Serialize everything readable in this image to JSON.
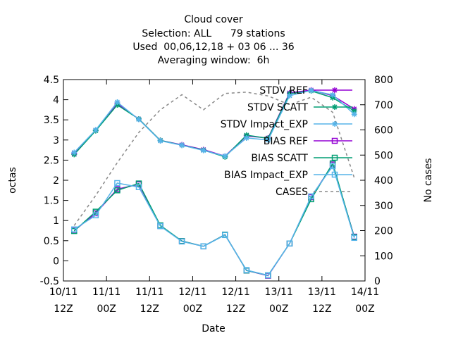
{
  "chart_data": {
    "type": "line",
    "title_lines": [
      "Cloud cover",
      "Selection: ALL      79 stations",
      "Used  00,06,12,18 + 03 06 ... 36",
      "Averaging window:  6h"
    ],
    "xlabel": "Date",
    "ylabel": "octas",
    "y2label": "No cases",
    "ylim": [
      -0.5,
      4.5
    ],
    "y2lim": [
      0,
      800
    ],
    "xlim_hours": [
      0,
      84
    ],
    "y_ticks": [
      "-0.5",
      "0",
      "0.5",
      "1",
      "1.5",
      "2",
      "2.5",
      "3",
      "3.5",
      "4",
      "4.5"
    ],
    "y2_ticks": [
      "0",
      "100",
      "200",
      "300",
      "400",
      "500",
      "600",
      "700",
      "800"
    ],
    "x_ticks": [
      {
        "line1": "10/11",
        "line2": "12Z"
      },
      {
        "line1": "11/11",
        "line2": "00Z"
      },
      {
        "line1": "11/11",
        "line2": "12Z"
      },
      {
        "line1": "12/11",
        "line2": "00Z"
      },
      {
        "line1": "12/11",
        "line2": "12Z"
      },
      {
        "line1": "13/11",
        "line2": "00Z"
      },
      {
        "line1": "13/11",
        "line2": "12Z"
      },
      {
        "line1": "14/11",
        "line2": "00Z"
      }
    ],
    "x_hours": [
      3,
      9,
      15,
      21,
      27,
      33,
      39,
      45,
      51,
      57,
      63,
      69,
      75,
      81
    ],
    "series": [
      {
        "name": "STDV REF",
        "color": "#9400d3",
        "marker": "star",
        "axis": "y1",
        "values": [
          2.66,
          3.24,
          3.9,
          3.52,
          2.99,
          2.88,
          2.76,
          2.6,
          3.1,
          3.05,
          4.17,
          4.24,
          4.1,
          3.77
        ]
      },
      {
        "name": "STDV SCATT",
        "color": "#009e73",
        "marker": "star",
        "axis": "y1",
        "values": [
          2.64,
          3.23,
          3.87,
          3.52,
          2.99,
          2.87,
          2.75,
          2.58,
          3.12,
          3.04,
          4.15,
          4.22,
          4.05,
          3.72
        ]
      },
      {
        "name": "STDV Impact_EXP",
        "color": "#56b4e9",
        "marker": "star",
        "axis": "y1",
        "values": [
          2.69,
          3.25,
          3.94,
          3.51,
          2.98,
          2.87,
          2.74,
          2.6,
          3.05,
          3.0,
          4.1,
          4.23,
          4.12,
          3.64
        ]
      },
      {
        "name": "BIAS REF",
        "color": "#9400d3",
        "marker": "square",
        "axis": "y1",
        "values": [
          0.75,
          1.18,
          1.78,
          1.9,
          0.87,
          0.49,
          0.36,
          0.65,
          -0.24,
          -0.37,
          0.43,
          1.58,
          2.39,
          0.6
        ]
      },
      {
        "name": "BIAS SCATT",
        "color": "#009e73",
        "marker": "square",
        "axis": "y1",
        "values": [
          0.74,
          1.22,
          1.75,
          1.92,
          0.88,
          0.49,
          0.36,
          0.65,
          -0.24,
          -0.36,
          0.43,
          1.53,
          2.42,
          0.59
        ]
      },
      {
        "name": "BIAS Impact_EXP",
        "color": "#56b4e9",
        "marker": "square",
        "axis": "y1",
        "values": [
          0.78,
          1.13,
          1.93,
          1.83,
          0.86,
          0.48,
          0.36,
          0.64,
          -0.23,
          -0.36,
          0.43,
          1.6,
          2.35,
          0.57
        ]
      },
      {
        "name": "CASES",
        "color": "#888888",
        "marker": "none",
        "dashed": true,
        "axis": "y2",
        "values": [
          220,
          340,
          470,
          590,
          680,
          740,
          680,
          745,
          750,
          735,
          700,
          730,
          670,
          410
        ]
      }
    ],
    "legend_position": "top-right",
    "grid": false
  }
}
